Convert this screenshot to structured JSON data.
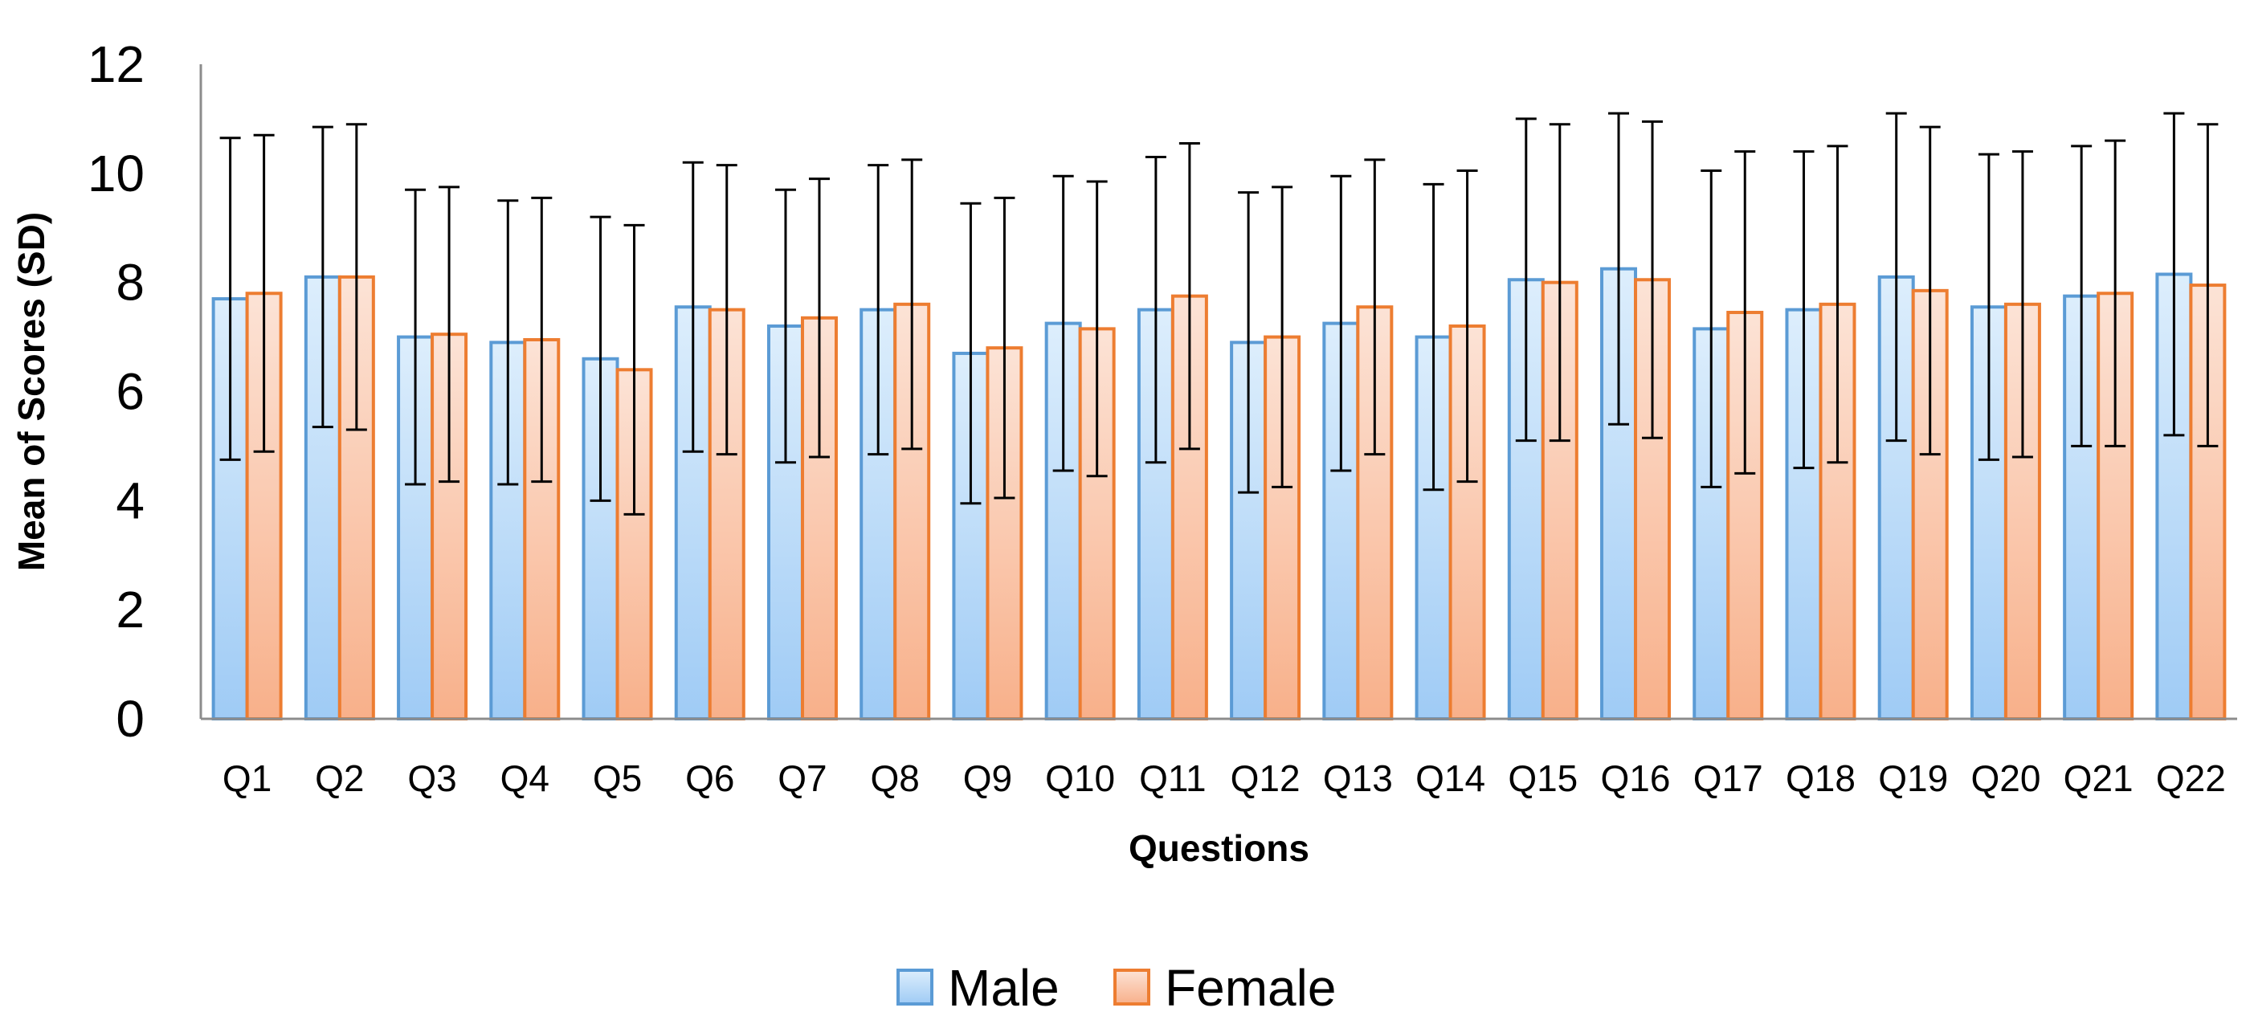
{
  "chart_data": {
    "type": "bar",
    "title": "",
    "xlabel": "Questions",
    "ylabel": "Mean of Scores (SD)",
    "ylim": [
      0,
      12
    ],
    "yticks": [
      0,
      2,
      4,
      6,
      8,
      10,
      12
    ],
    "grid": false,
    "legend_position": "bottom-center",
    "categories": [
      "Q1",
      "Q2",
      "Q3",
      "Q4",
      "Q5",
      "Q6",
      "Q7",
      "Q8",
      "Q9",
      "Q10",
      "Q11",
      "Q12",
      "Q13",
      "Q14",
      "Q15",
      "Q16",
      "Q17",
      "Q18",
      "Q19",
      "Q20",
      "Q21",
      "Q22"
    ],
    "series": [
      {
        "name": "Male",
        "color": "#5B9BD5",
        "fill_top": "#DDEEFC",
        "fill_bottom": "#9FCBF5",
        "values": [
          7.7,
          8.1,
          7.0,
          6.9,
          6.6,
          7.55,
          7.2,
          7.5,
          6.7,
          7.25,
          7.5,
          6.9,
          7.25,
          7.0,
          8.05,
          8.25,
          7.15,
          7.5,
          8.1,
          7.55,
          7.75,
          8.15
        ],
        "errors": [
          2.95,
          2.75,
          2.7,
          2.6,
          2.6,
          2.65,
          2.5,
          2.65,
          2.75,
          2.7,
          2.8,
          2.75,
          2.7,
          2.8,
          2.95,
          2.85,
          2.9,
          2.9,
          3.0,
          2.8,
          2.75,
          2.95
        ]
      },
      {
        "name": "Female",
        "color": "#ED7D31",
        "fill_top": "#FCE3D6",
        "fill_bottom": "#F8B08A",
        "values": [
          7.8,
          8.1,
          7.05,
          6.95,
          6.4,
          7.5,
          7.35,
          7.6,
          6.8,
          7.15,
          7.75,
          7.0,
          7.55,
          7.2,
          8.0,
          8.05,
          7.45,
          7.6,
          7.85,
          7.6,
          7.8,
          7.95
        ],
        "errors": [
          2.9,
          2.8,
          2.7,
          2.6,
          2.65,
          2.65,
          2.55,
          2.65,
          2.75,
          2.7,
          2.8,
          2.75,
          2.7,
          2.85,
          2.9,
          2.9,
          2.95,
          2.9,
          3.0,
          2.8,
          2.8,
          2.95
        ]
      }
    ]
  }
}
